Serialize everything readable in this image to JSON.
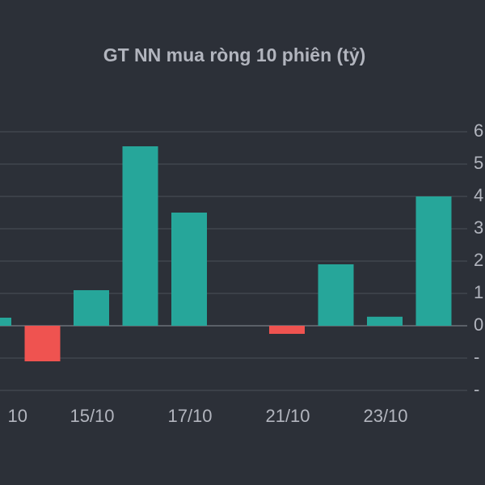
{
  "chart_data": {
    "type": "bar",
    "title": "GT NN mua ròng 10 phiên (tỷ)",
    "categories": [
      "10",
      null,
      "15/10",
      null,
      "17/10",
      null,
      "21/10",
      null,
      "23/10",
      null
    ],
    "values": [
      0.25,
      -1.1,
      1.1,
      5.55,
      3.5,
      0,
      -0.25,
      1.9,
      0.28,
      4.0
    ],
    "positive_color": "#26a69a",
    "negative_color": "#ef5350",
    "ylim": [
      -2.2,
      6.5
    ],
    "yticks": [
      {
        "value": -2,
        "label": "-"
      },
      {
        "value": -1,
        "label": "-"
      },
      0,
      1,
      2,
      3,
      4,
      5,
      6
    ],
    "grid": true
  }
}
